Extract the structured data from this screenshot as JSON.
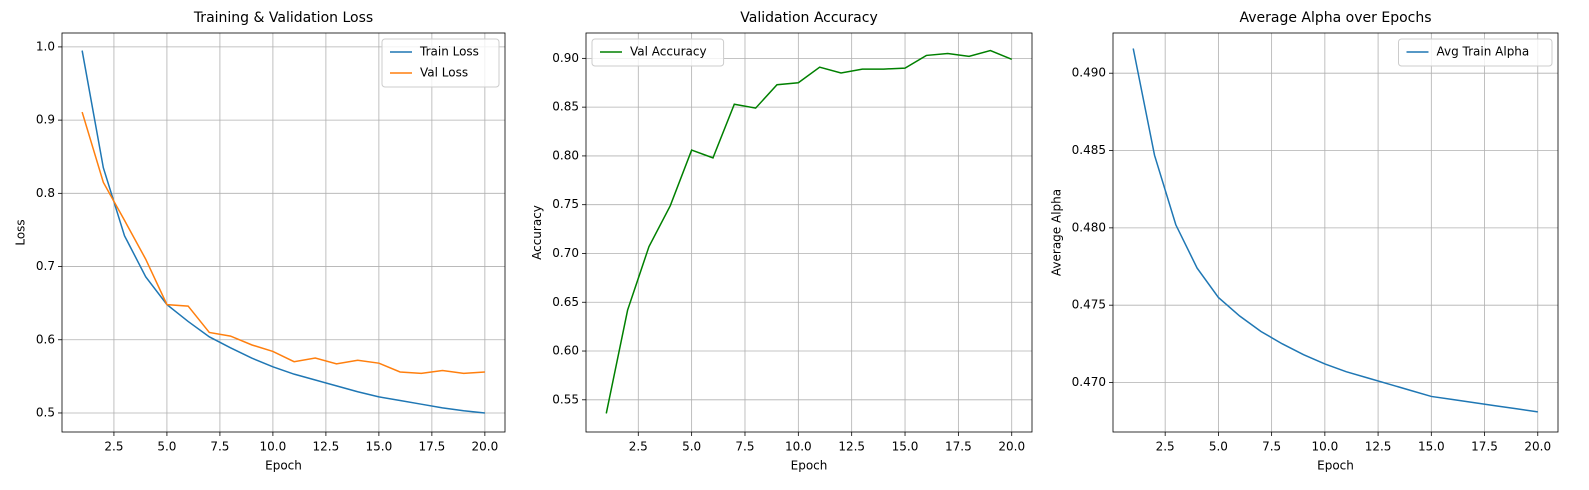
{
  "chart_data": [
    {
      "type": "line",
      "title": "Training & Validation Loss",
      "x_label": "Epoch",
      "y_label": "Loss",
      "x": [
        1,
        2,
        3,
        4,
        5,
        6,
        7,
        8,
        9,
        10,
        11,
        12,
        13,
        14,
        15,
        16,
        17,
        18,
        19,
        20
      ],
      "series": [
        {
          "name": "Train Loss",
          "color": "#1f77b4",
          "values": [
            0.995,
            0.835,
            0.742,
            0.686,
            0.648,
            0.625,
            0.604,
            0.589,
            0.575,
            0.563,
            0.553,
            0.545,
            0.537,
            0.529,
            0.522,
            0.517,
            0.512,
            0.507,
            0.503,
            0.5
          ]
        },
        {
          "name": "Val Loss",
          "color": "#ff7f0e",
          "values": [
            0.911,
            0.815,
            0.763,
            0.71,
            0.648,
            0.646,
            0.61,
            0.605,
            0.593,
            0.584,
            0.57,
            0.575,
            0.567,
            0.572,
            0.568,
            0.556,
            0.554,
            0.558,
            0.554,
            0.556
          ]
        }
      ],
      "xlim": [
        0.05,
        20.95
      ],
      "xticks": [
        2.5,
        {
          "value": 5,
          "label": "5.0"
        },
        7.5,
        {
          "value": 10,
          "label": "10.0"
        },
        12.5,
        {
          "value": 15,
          "label": "15.0"
        },
        17.5,
        {
          "value": 20,
          "label": "20.0"
        }
      ],
      "ylim": [
        0.474,
        1.019
      ],
      "yticks": [
        0.5,
        0.6,
        0.7,
        0.8,
        0.9,
        {
          "value": 1,
          "label": "1.0"
        }
      ],
      "grid": true,
      "legend": "upper right"
    },
    {
      "type": "line",
      "title": "Validation Accuracy",
      "x_label": "Epoch",
      "y_label": "Accuracy",
      "x": [
        1,
        2,
        3,
        4,
        5,
        6,
        7,
        8,
        9,
        10,
        11,
        12,
        13,
        14,
        15,
        16,
        17,
        18,
        19,
        20
      ],
      "series": [
        {
          "name": "Val Accuracy",
          "color": "#008000",
          "values": [
            0.536,
            0.642,
            0.707,
            0.749,
            0.806,
            0.798,
            0.853,
            0.849,
            0.873,
            0.875,
            0.891,
            0.885,
            0.889,
            0.889,
            0.89,
            0.903,
            0.905,
            0.902,
            0.908,
            0.899
          ]
        }
      ],
      "xlim": [
        0.05,
        20.95
      ],
      "xticks": [
        2.5,
        {
          "value": 5,
          "label": "5.0"
        },
        7.5,
        {
          "value": 10,
          "label": "10.0"
        },
        12.5,
        {
          "value": 15,
          "label": "15.0"
        },
        17.5,
        {
          "value": 20,
          "label": "20.0"
        }
      ],
      "ylim": [
        0.517,
        0.926
      ],
      "yticks": [
        0.55,
        {
          "value": 0.6,
          "label": "0.60"
        },
        0.65,
        {
          "value": 0.7,
          "label": "0.70"
        },
        0.75,
        {
          "value": 0.8,
          "label": "0.80"
        },
        0.85,
        {
          "value": 0.9,
          "label": "0.90"
        }
      ],
      "grid": true,
      "legend": "upper left"
    },
    {
      "type": "line",
      "title": "Average Alpha over Epochs",
      "x_label": "Epoch",
      "y_label": "Average Alpha",
      "x": [
        1,
        2,
        3,
        4,
        5,
        6,
        7,
        8,
        9,
        10,
        11,
        12,
        13,
        14,
        15,
        16,
        17,
        18,
        19,
        20
      ],
      "series": [
        {
          "name": "Avg Train Alpha",
          "color": "#1f77b4",
          "values": [
            0.4916,
            0.4847,
            0.4802,
            0.4774,
            0.4755,
            0.4743,
            0.4733,
            0.4725,
            0.4718,
            0.4712,
            0.4707,
            0.4703,
            0.4699,
            0.4695,
            0.4691,
            0.4689,
            0.4687,
            0.4685,
            0.4683,
            0.4681
          ]
        }
      ],
      "xlim": [
        0.05,
        20.95
      ],
      "xticks": [
        2.5,
        {
          "value": 5,
          "label": "5.0"
        },
        7.5,
        {
          "value": 10,
          "label": "10.0"
        },
        12.5,
        {
          "value": 15,
          "label": "15.0"
        },
        17.5,
        {
          "value": 20,
          "label": "20.0"
        }
      ],
      "ylim": [
        0.4668,
        0.4926
      ],
      "yticks": [
        {
          "value": 0.47,
          "label": "0.470"
        },
        0.475,
        {
          "value": 0.48,
          "label": "0.480"
        },
        0.485,
        {
          "value": 0.49,
          "label": "0.490"
        }
      ],
      "grid": true,
      "legend": "upper right"
    }
  ]
}
